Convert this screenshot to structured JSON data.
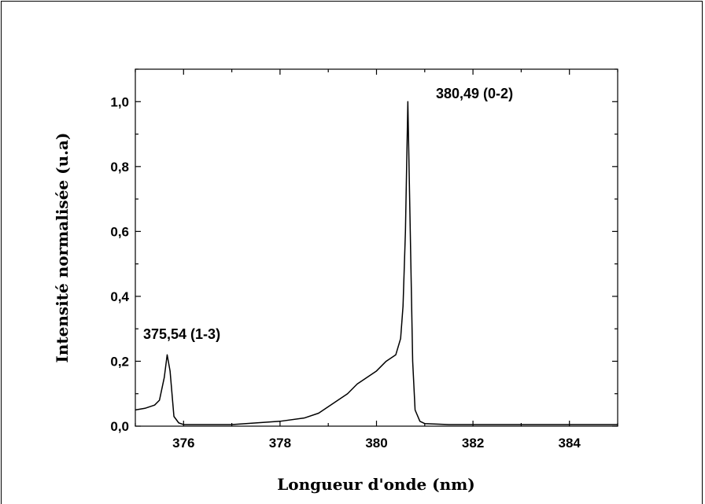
{
  "chart_data": {
    "type": "line",
    "title": "",
    "xlabel": "Longueur d'onde (nm)",
    "ylabel": "Intensité normalisée (u.a)",
    "xlim": [
      375,
      385
    ],
    "ylim": [
      0,
      1.1
    ],
    "x_ticks": [
      376,
      378,
      380,
      382,
      384
    ],
    "x_tick_labels": [
      "376",
      "378",
      "380",
      "382",
      "384"
    ],
    "y_ticks": [
      0,
      0.2,
      0.4,
      0.6,
      0.8,
      1.0
    ],
    "y_tick_labels": [
      "0,0",
      "0,2",
      "0,4",
      "0,6",
      "0,8",
      "1,0"
    ],
    "grid": false,
    "annotations": [
      {
        "text": "375,54 (1-3)",
        "x": 375.6,
        "y": 0.22
      },
      {
        "text": "380,49 (0-2)",
        "x": 380.65,
        "y": 1.0
      }
    ],
    "series": [
      {
        "color": "#000000",
        "x": [
          375.0,
          375.2,
          375.4,
          375.5,
          375.6,
          375.66,
          375.72,
          375.8,
          375.9,
          376.0,
          376.5,
          377.0,
          377.5,
          378.0,
          378.5,
          378.8,
          379.0,
          379.2,
          379.4,
          379.6,
          379.8,
          380.0,
          380.2,
          380.4,
          380.5,
          380.55,
          380.6,
          380.65,
          380.7,
          380.75,
          380.8,
          380.9,
          381.0,
          381.5,
          382.0,
          383.0,
          384.0,
          385.0
        ],
        "y": [
          0.05,
          0.055,
          0.065,
          0.08,
          0.15,
          0.22,
          0.17,
          0.03,
          0.01,
          0.005,
          0.005,
          0.005,
          0.01,
          0.015,
          0.025,
          0.04,
          0.06,
          0.08,
          0.1,
          0.13,
          0.15,
          0.17,
          0.2,
          0.22,
          0.27,
          0.37,
          0.6,
          1.0,
          0.6,
          0.2,
          0.05,
          0.015,
          0.008,
          0.005,
          0.005,
          0.005,
          0.005,
          0.005
        ]
      }
    ]
  }
}
